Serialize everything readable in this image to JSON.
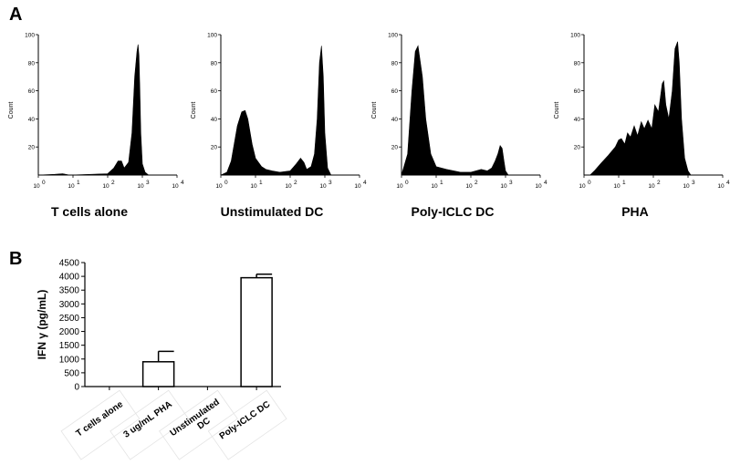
{
  "panels": {
    "a_label": "A",
    "b_label": "B"
  },
  "chart_data": [
    {
      "type": "area",
      "panel": "A",
      "title": "T cells alone",
      "ylabel": "Count",
      "xscale": "log",
      "xlim": [
        1,
        10000
      ],
      "ylim": [
        0,
        100
      ],
      "x_ticks": [
        "10",
        "10",
        "10",
        "10",
        "10"
      ],
      "x_tick_exponents": [
        "0",
        "1",
        "2",
        "3",
        "4"
      ],
      "y_ticks": [
        "20",
        "40",
        "60",
        "80",
        "100"
      ],
      "x": [
        1,
        3,
        5,
        8,
        100,
        150,
        200,
        250,
        300,
        400,
        500,
        600,
        700,
        750,
        800,
        850,
        900,
        1000,
        1200,
        1500
      ],
      "y": [
        0,
        0.5,
        1,
        0,
        1,
        5,
        10,
        10,
        5,
        9,
        30,
        70,
        88,
        93,
        85,
        60,
        30,
        8,
        2,
        0
      ]
    },
    {
      "type": "area",
      "panel": "A",
      "title": "Unstimulated DC",
      "ylabel": "Count",
      "xscale": "log",
      "xlim": [
        1,
        10000
      ],
      "ylim": [
        0,
        100
      ],
      "x_ticks": [
        "10",
        "10",
        "10",
        "10",
        "10"
      ],
      "x_tick_exponents": [
        "0",
        "1",
        "2",
        "3",
        "4"
      ],
      "y_ticks": [
        "20",
        "40",
        "60",
        "80",
        "100"
      ],
      "x": [
        1,
        1.5,
        2,
        3,
        4,
        5,
        6,
        8,
        10,
        15,
        20,
        30,
        50,
        100,
        150,
        200,
        250,
        300,
        400,
        500,
        600,
        700,
        800,
        900,
        1000,
        1200,
        1500
      ],
      "y": [
        0,
        2,
        10,
        35,
        45,
        46,
        40,
        22,
        12,
        6,
        4,
        3,
        2,
        3,
        8,
        12,
        9,
        4,
        6,
        15,
        40,
        80,
        92,
        70,
        30,
        5,
        0
      ]
    },
    {
      "type": "area",
      "panel": "A",
      "title": "Poly-ICLC DC",
      "ylabel": "Count",
      "xscale": "log",
      "xlim": [
        1,
        10000
      ],
      "ylim": [
        0,
        100
      ],
      "x_ticks": [
        "10",
        "10",
        "10",
        "10",
        "10"
      ],
      "x_tick_exponents": [
        "0",
        "1",
        "2",
        "3",
        "4"
      ],
      "y_ticks": [
        "20",
        "40",
        "60",
        "80",
        "100"
      ],
      "x": [
        1,
        1.5,
        2,
        2.5,
        3,
        4,
        5,
        7,
        10,
        20,
        50,
        100,
        200,
        300,
        400,
        500,
        600,
        700,
        800,
        900,
        1000,
        1200
      ],
      "y": [
        0,
        15,
        60,
        88,
        92,
        70,
        40,
        15,
        6,
        4,
        2,
        2,
        4,
        3,
        5,
        10,
        15,
        21,
        19,
        10,
        3,
        0
      ]
    },
    {
      "type": "area",
      "panel": "A",
      "title": "PHA",
      "ylabel": "Count",
      "xscale": "log",
      "xlim": [
        1,
        10000
      ],
      "ylim": [
        0,
        100
      ],
      "x_ticks": [
        "10",
        "10",
        "10",
        "10",
        "10"
      ],
      "x_tick_exponents": [
        "0",
        "1",
        "2",
        "3",
        "4"
      ],
      "y_ticks": [
        "20",
        "40",
        "60",
        "80",
        "100"
      ],
      "x": [
        1.5,
        2,
        3,
        5,
        8,
        10,
        12,
        15,
        18,
        22,
        28,
        35,
        45,
        55,
        70,
        90,
        110,
        140,
        180,
        200,
        230,
        280,
        350,
        420,
        500,
        560,
        650,
        800,
        1000,
        1200
      ],
      "y": [
        0,
        3,
        8,
        14,
        20,
        25,
        26,
        22,
        30,
        27,
        35,
        28,
        38,
        33,
        39,
        33,
        50,
        45,
        65,
        67,
        50,
        40,
        60,
        90,
        95,
        80,
        40,
        12,
        3,
        0
      ]
    },
    {
      "type": "bar",
      "panel": "B",
      "categories": [
        "T cells alone",
        "3 ug/mL PHA",
        "Unstimulated DC",
        "Poly-ICLC DC"
      ],
      "values": [
        0,
        900,
        0,
        3950
      ],
      "errors": [
        0,
        380,
        0,
        130
      ],
      "ylabel": "IFN γ (pg/mL)",
      "ylim": [
        0,
        4500
      ],
      "y_ticks": [
        "0",
        "500",
        "1000",
        "1500",
        "2000",
        "2500",
        "3000",
        "3500",
        "4000",
        "4500"
      ]
    }
  ]
}
